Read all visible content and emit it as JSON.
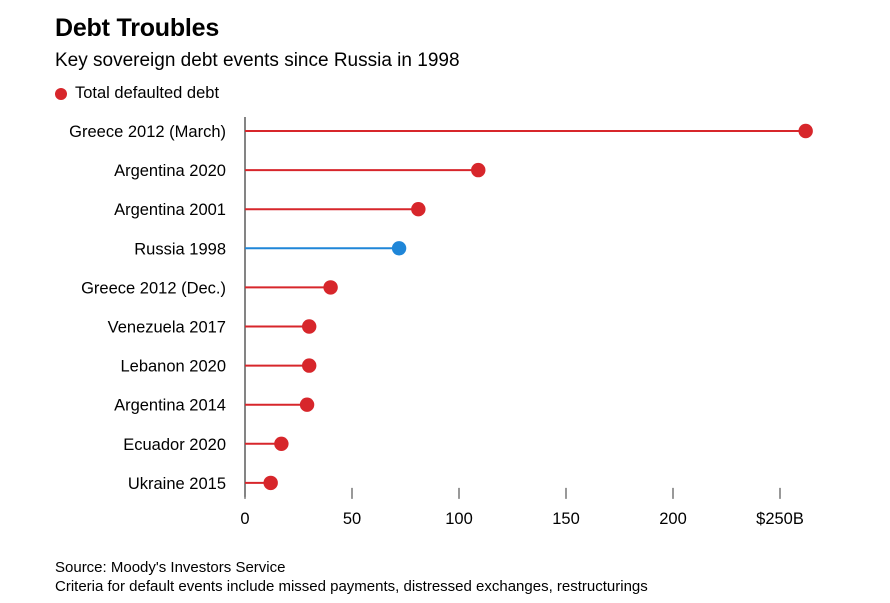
{
  "title": "Debt Troubles",
  "subtitle": "Key sovereign debt events since Russia in 1998",
  "legend": {
    "label": "Total defaulted debt",
    "color": "#d7262b"
  },
  "footer": {
    "source": "Source: Moody's Investors Service",
    "note": "Criteria for default events include missed payments, distressed exchanges, restructurings"
  },
  "chart_data": {
    "type": "lollipop",
    "categories": [
      "Greece 2012 (March)",
      "Argentina 2020",
      "Argentina 2001",
      "Russia 1998",
      "Greece 2012 (Dec.)",
      "Venezuela 2017",
      "Lebanon 2020",
      "Argentina 2014",
      "Ecuador 2020",
      "Ukraine 2015"
    ],
    "series": [
      {
        "name": "Total defaulted debt",
        "values": [
          262,
          109,
          81,
          72,
          40,
          30,
          30,
          29,
          17,
          12
        ]
      }
    ],
    "highlight": "Russia 1998",
    "colors": {
      "default": "#d7262b",
      "highlight": "#1f86d8"
    },
    "xlim": [
      0,
      250
    ],
    "xticks": [
      0,
      50,
      100,
      150,
      200,
      250
    ],
    "xtick_labels": [
      "0",
      "50",
      "100",
      "150",
      "200",
      "$250B"
    ],
    "xlabel": "",
    "ylabel": ""
  }
}
